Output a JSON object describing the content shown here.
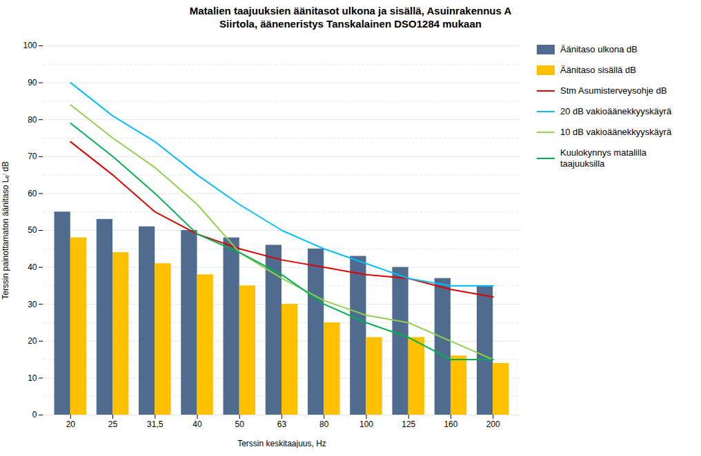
{
  "chart_data": {
    "type": "bar",
    "title": "Matalien taajuuksien äänitasot ulkona ja sisällä, Asuinrakennus A",
    "subtitle": "Siirtola, ääneneristys Tanskalainen DSO1284 mukaan",
    "xlabel": "Terssin keskitaajuus, Hz",
    "ylabel": "Terssin painottamaton äänitaso Lₑⁱ dB",
    "categories": [
      "20",
      "25",
      "31,5",
      "40",
      "50",
      "63",
      "80",
      "100",
      "125",
      "160",
      "200"
    ],
    "series": [
      {
        "name": "Äänitaso ulkona dB",
        "type": "bar",
        "color": "#4f6b8e",
        "values": [
          55,
          53,
          51,
          50,
          48,
          46,
          45,
          43,
          40,
          37,
          35
        ]
      },
      {
        "name": "Äänitaso sisällä dB",
        "type": "bar",
        "color": "#ffc000",
        "values": [
          48,
          44,
          41,
          38,
          35,
          30,
          25,
          21,
          21,
          16,
          14
        ]
      },
      {
        "name": "Stm Asumisterveysohje dB",
        "type": "line",
        "color": "#e00000",
        "values": [
          74,
          65,
          55,
          49,
          45,
          42,
          40,
          38,
          37,
          34,
          32
        ]
      },
      {
        "name": "20 dB vakioäänekkyyskäyrä",
        "type": "line",
        "color": "#00bfff",
        "values": [
          90,
          81,
          74,
          65,
          57,
          50,
          45,
          41,
          37,
          35,
          35
        ]
      },
      {
        "name": "10 dB vakioäänekkyyskäyrä",
        "type": "line",
        "color": "#92d050",
        "values": [
          84,
          75,
          67,
          57,
          44,
          37,
          31,
          27,
          25,
          20,
          15
        ]
      },
      {
        "name": "Kuulokynnys matalilla\ntaajuuksilla",
        "type": "line",
        "color": "#00b050",
        "values": [
          79,
          70,
          60,
          49,
          44,
          38,
          30,
          25,
          21,
          15,
          15
        ]
      }
    ],
    "ylim": [
      0,
      100
    ],
    "yticks": [
      0,
      10,
      20,
      30,
      40,
      50,
      60,
      70,
      80,
      90,
      100
    ],
    "grid": true,
    "legend": "right"
  }
}
